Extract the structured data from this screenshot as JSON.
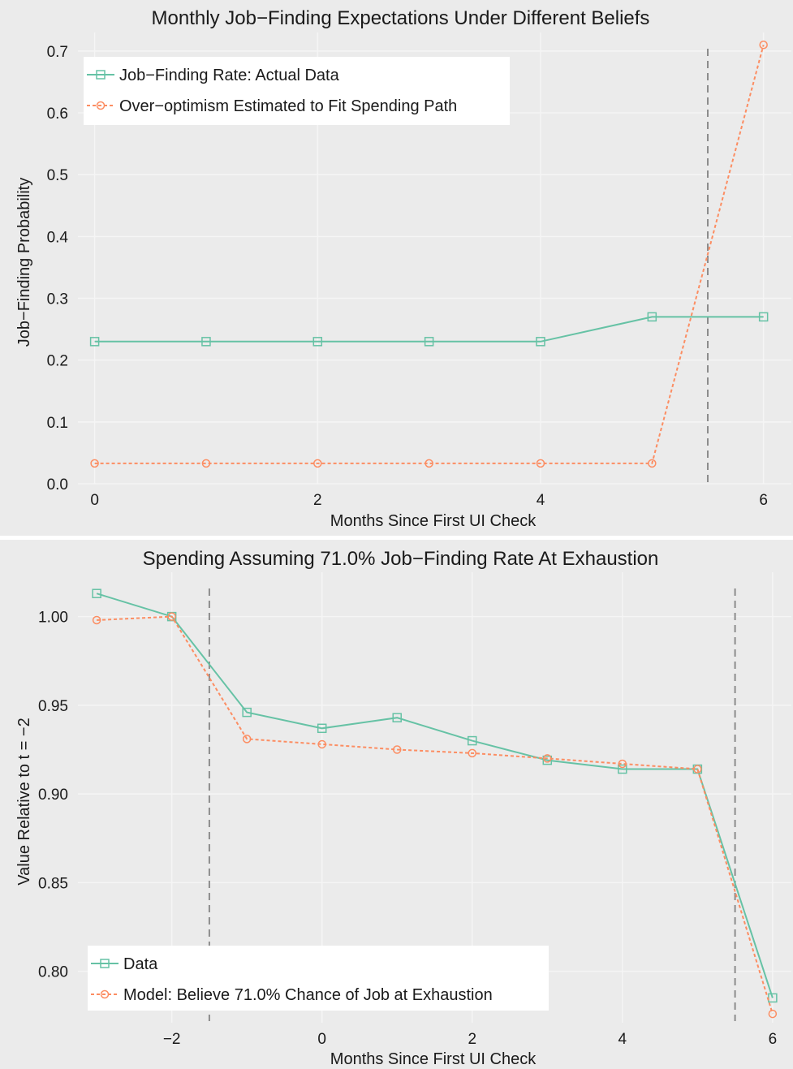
{
  "colors": {
    "background": "#ebebeb",
    "grid": "#f5f5f5",
    "series_actual": "#66c2a5",
    "series_model": "#fc8d62",
    "vline": "#8c8c8c",
    "legend_bg": "#ffffff"
  },
  "chart_data": [
    {
      "type": "line",
      "title": "Monthly Job−Finding Expectations Under Different Beliefs",
      "xlabel": "Months Since First UI Check",
      "ylabel": "Job−Finding Probability",
      "xlim": [
        -0.15,
        6.25
      ],
      "ylim": [
        0.0,
        0.73
      ],
      "xticks": [
        0,
        2,
        4,
        6
      ],
      "yticks": [
        0.0,
        0.1,
        0.2,
        0.3,
        0.4,
        0.5,
        0.6,
        0.7
      ],
      "ytick_labels": [
        "0.0",
        "0.1",
        "0.2",
        "0.3",
        "0.4",
        "0.5",
        "0.6",
        "0.7"
      ],
      "xtick_labels": [
        "0",
        "2",
        "4",
        "6"
      ],
      "vlines": [
        5.5
      ],
      "legend": "top-left",
      "series": [
        {
          "name": "Job−Finding Rate: Actual Data",
          "marker": "square",
          "dash": "solid",
          "x": [
            0,
            1,
            2,
            3,
            4,
            5,
            6
          ],
          "y": [
            0.23,
            0.23,
            0.23,
            0.23,
            0.23,
            0.27,
            0.27
          ]
        },
        {
          "name": "Over−optimism Estimated to Fit Spending Path",
          "marker": "circle",
          "dash": "dotted",
          "x": [
            0,
            1,
            2,
            3,
            4,
            5,
            6
          ],
          "y": [
            0.033,
            0.033,
            0.033,
            0.033,
            0.033,
            0.033,
            0.71
          ]
        }
      ]
    },
    {
      "type": "line",
      "title": "Spending Assuming 71.0% Job−Finding Rate At Exhaustion",
      "xlabel": "Months Since First UI Check",
      "ylabel": "Value Relative to t = −2",
      "xlim": [
        -3.25,
        6.25
      ],
      "ylim": [
        0.771,
        1.025
      ],
      "xticks": [
        -2,
        0,
        2,
        4,
        6
      ],
      "xtick_labels": [
        "−2",
        "0",
        "2",
        "4",
        "6"
      ],
      "yticks": [
        0.8,
        0.85,
        0.9,
        0.95,
        1.0
      ],
      "ytick_labels": [
        "0.80",
        "0.85",
        "0.90",
        "0.95",
        "1.00"
      ],
      "vlines": [
        -1.5,
        5.5
      ],
      "legend": "bottom-left",
      "series": [
        {
          "name": "Data",
          "marker": "square",
          "dash": "solid",
          "x": [
            -3,
            -2,
            -1,
            0,
            1,
            2,
            3,
            4,
            5,
            6
          ],
          "y": [
            1.013,
            1.0,
            0.946,
            0.937,
            0.943,
            0.93,
            0.919,
            0.914,
            0.914,
            0.785
          ]
        },
        {
          "name": "Model: Believe 71.0% Chance of Job at Exhaustion",
          "marker": "circle",
          "dash": "dotted",
          "x": [
            -3,
            -2,
            -1,
            0,
            1,
            2,
            3,
            4,
            5,
            6
          ],
          "y": [
            0.998,
            1.0,
            0.931,
            0.928,
            0.925,
            0.923,
            0.92,
            0.917,
            0.914,
            0.776
          ]
        }
      ]
    }
  ]
}
